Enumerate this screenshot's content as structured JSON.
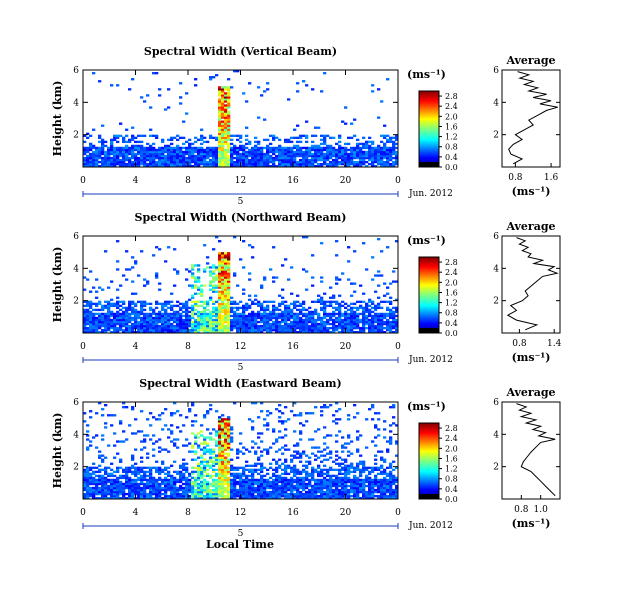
{
  "chart_data": [
    {
      "type": "heatmap",
      "title": "Spectral Width (Vertical Beam)",
      "ylabel": "Height (km)",
      "yticks": [
        "2",
        "4",
        "6"
      ],
      "xticks": [
        "0",
        "4",
        "8",
        "12",
        "16",
        "20",
        "0"
      ],
      "xlim": [
        0,
        24
      ],
      "ylim": [
        0,
        6
      ],
      "day_label": "5",
      "date_label": "Jun. 2012",
      "colorbar": {
        "unit": "(ms⁻¹)",
        "ticks": [
          "0.0",
          "0.4",
          "0.8",
          "1.2",
          "1.6",
          "2.0",
          "2.4",
          "2.8"
        ],
        "range": [
          0,
          3.0
        ]
      },
      "average_profile": {
        "title": "Average",
        "xlabel": "(ms⁻¹)",
        "xticks": [
          "0.8",
          "1.6"
        ],
        "xlim": [
          0.5,
          1.8
        ],
        "yticks": [
          "2",
          "4",
          "6"
        ],
        "height_km": [
          0.2,
          0.5,
          0.8,
          1.1,
          1.4,
          1.7,
          2.0,
          2.3,
          2.6,
          2.9,
          3.2,
          3.5,
          3.7,
          3.9,
          4.1,
          4.3,
          4.5,
          4.7,
          4.9,
          5.1,
          5.3,
          5.5,
          5.7,
          5.9
        ],
        "width_ms": [
          0.75,
          0.95,
          0.7,
          0.65,
          0.75,
          0.95,
          0.8,
          1.0,
          1.2,
          1.1,
          1.3,
          1.5,
          1.75,
          1.35,
          1.6,
          1.2,
          1.5,
          1.1,
          1.3,
          1.0,
          1.2,
          0.9,
          1.1,
          0.85
        ]
      }
    },
    {
      "type": "heatmap",
      "title": "Spectral Width (Northward Beam)",
      "ylabel": "Height (km)",
      "yticks": [
        "2",
        "4",
        "6"
      ],
      "xticks": [
        "0",
        "4",
        "8",
        "12",
        "16",
        "20",
        "0"
      ],
      "xlim": [
        0,
        24
      ],
      "ylim": [
        0,
        6
      ],
      "day_label": "5",
      "date_label": "Jun. 2012",
      "colorbar": {
        "unit": "(ms⁻¹)",
        "ticks": [
          "0.0",
          "0.4",
          "0.8",
          "1.2",
          "1.6",
          "2.0",
          "2.4",
          "2.8"
        ],
        "range": [
          0,
          3.0
        ]
      },
      "average_profile": {
        "title": "Average",
        "xlabel": "(ms⁻¹)",
        "xticks": [
          "0.8",
          "1.4"
        ],
        "xlim": [
          0.5,
          1.5
        ],
        "yticks": [
          "2",
          "4",
          "6"
        ],
        "height_km": [
          0.2,
          0.5,
          0.8,
          1.1,
          1.4,
          1.7,
          2.0,
          2.3,
          2.6,
          2.9,
          3.2,
          3.5,
          3.7,
          3.9,
          4.1,
          4.3,
          4.5,
          4.7,
          4.9,
          5.1,
          5.3,
          5.5,
          5.7,
          5.9
        ],
        "width_ms": [
          0.9,
          1.1,
          0.75,
          0.6,
          0.75,
          0.65,
          0.85,
          0.95,
          0.9,
          1.0,
          1.1,
          1.2,
          1.45,
          1.3,
          1.4,
          1.05,
          1.2,
          0.95,
          1.0,
          0.85,
          0.95,
          0.8,
          0.9,
          0.75
        ]
      }
    },
    {
      "type": "heatmap",
      "title": "Spectral Width (Eastward Beam)",
      "ylabel": "Height (km)",
      "yticks": [
        "2",
        "4",
        "6"
      ],
      "xticks": [
        "0",
        "4",
        "8",
        "12",
        "16",
        "20",
        "0"
      ],
      "xlim": [
        0,
        24
      ],
      "ylim": [
        0,
        6
      ],
      "day_label": "5",
      "date_label": "Jun. 2012",
      "colorbar": {
        "unit": "(ms⁻¹)",
        "ticks": [
          "0.0",
          "0.4",
          "0.8",
          "1.2",
          "1.6",
          "2.0",
          "2.4",
          "2.8"
        ],
        "range": [
          0,
          3.0
        ]
      },
      "average_profile": {
        "title": "Average",
        "xlabel": "(ms⁻¹)",
        "xticks": [
          "0.8",
          "1.0"
        ],
        "xlim": [
          0.6,
          1.2
        ],
        "yticks": [
          "2",
          "4",
          "6"
        ],
        "height_km": [
          0.2,
          0.5,
          0.8,
          1.1,
          1.4,
          1.7,
          2.0,
          2.3,
          2.6,
          2.9,
          3.2,
          3.5,
          3.7,
          3.9,
          4.1,
          4.3,
          4.5,
          4.7,
          4.9,
          5.1,
          5.3,
          5.5,
          5.7,
          5.9
        ],
        "width_ms": [
          1.15,
          1.1,
          1.05,
          1.0,
          0.95,
          0.9,
          0.8,
          0.82,
          0.86,
          0.9,
          0.95,
          1.0,
          1.15,
          0.98,
          1.05,
          0.92,
          1.0,
          0.85,
          0.95,
          0.8,
          0.9,
          0.78,
          0.85,
          0.75
        ]
      }
    }
  ],
  "footer": {
    "xlabel": "Local Time"
  }
}
